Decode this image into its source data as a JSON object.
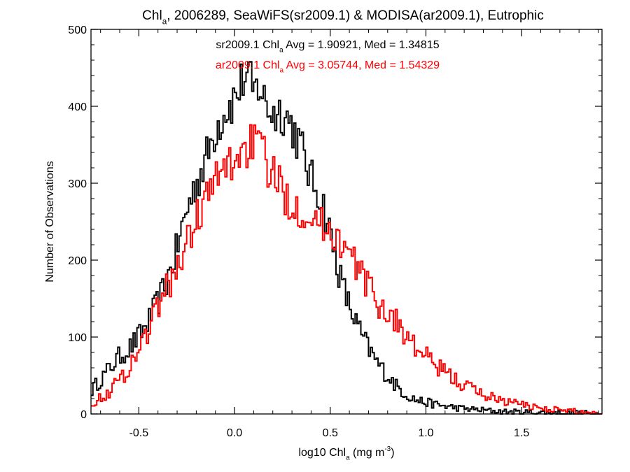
{
  "chart_data": {
    "type": "line",
    "title_parts": [
      "Chl",
      "a",
      ", 2006289, SeaWiFS(sr2009.1) & MODISA(ar2009.1), Eutrophic"
    ],
    "xlabel_parts": [
      "log10 Chl",
      "a",
      " (mg m",
      "-3",
      ")"
    ],
    "ylabel": "Number of Observations",
    "xlim": [
      -0.75,
      1.92
    ],
    "ylim": [
      0,
      500
    ],
    "xticks": [
      -0.5,
      0.0,
      0.5,
      1.0,
      1.5
    ],
    "xtick_labels": [
      "-0.5",
      "0.0",
      "0.5",
      "1.0",
      "1.5"
    ],
    "yticks": [
      0,
      100,
      200,
      300,
      400,
      500
    ],
    "ytick_labels": [
      "0",
      "100",
      "200",
      "300",
      "400",
      "500"
    ],
    "grid": false,
    "bin_width": 0.01,
    "legend": [
      {
        "parts": [
          "sr2009.1 Chl",
          "a",
          " Avg = 1.90921, Med = 1.34815"
        ],
        "color": "#000000"
      },
      {
        "parts": [
          "ar2009.1 Chl",
          "a",
          " Avg = 3.05744, Med = 1.54329"
        ],
        "color": "#ff0000"
      }
    ],
    "series": [
      {
        "color": "#000000",
        "x": [
          -0.75,
          -0.7,
          -0.65,
          -0.6,
          -0.55,
          -0.5,
          -0.45,
          -0.4,
          -0.35,
          -0.3,
          -0.25,
          -0.2,
          -0.15,
          -0.1,
          -0.05,
          0.0,
          0.03,
          0.05,
          0.08,
          0.1,
          0.13,
          0.15,
          0.2,
          0.25,
          0.3,
          0.35,
          0.4,
          0.45,
          0.5,
          0.55,
          0.6,
          0.65,
          0.7,
          0.75,
          0.8,
          0.85,
          0.9,
          0.95,
          1.0,
          1.1,
          1.2,
          1.3,
          1.4,
          1.5,
          1.6,
          1.7,
          1.8,
          1.92
        ],
        "y": [
          30,
          45,
          60,
          75,
          85,
          100,
          120,
          145,
          175,
          215,
          265,
          300,
          330,
          370,
          395,
          410,
          425,
          440,
          430,
          415,
          430,
          410,
          390,
          395,
          375,
          345,
          305,
          285,
          235,
          180,
          140,
          110,
          85,
          65,
          50,
          35,
          25,
          18,
          15,
          10,
          7,
          5,
          3,
          2,
          2,
          1,
          1,
          0
        ]
      },
      {
        "color": "#ff0000",
        "x": [
          -0.75,
          -0.7,
          -0.65,
          -0.6,
          -0.55,
          -0.5,
          -0.45,
          -0.4,
          -0.35,
          -0.3,
          -0.25,
          -0.2,
          -0.15,
          -0.1,
          -0.05,
          0.0,
          0.03,
          0.05,
          0.08,
          0.1,
          0.13,
          0.15,
          0.2,
          0.25,
          0.3,
          0.35,
          0.4,
          0.45,
          0.5,
          0.55,
          0.6,
          0.65,
          0.7,
          0.75,
          0.8,
          0.85,
          0.9,
          0.95,
          1.0,
          1.05,
          1.1,
          1.15,
          1.2,
          1.3,
          1.4,
          1.5,
          1.6,
          1.7,
          1.8,
          1.92
        ],
        "y": [
          15,
          20,
          30,
          45,
          60,
          85,
          110,
          140,
          165,
          190,
          220,
          255,
          280,
          300,
          320,
          330,
          340,
          345,
          350,
          355,
          345,
          335,
          310,
          290,
          275,
          265,
          260,
          245,
          240,
          225,
          205,
          190,
          165,
          145,
          130,
          120,
          100,
          85,
          75,
          62,
          55,
          45,
          38,
          25,
          18,
          12,
          8,
          5,
          3,
          1
        ]
      }
    ]
  }
}
